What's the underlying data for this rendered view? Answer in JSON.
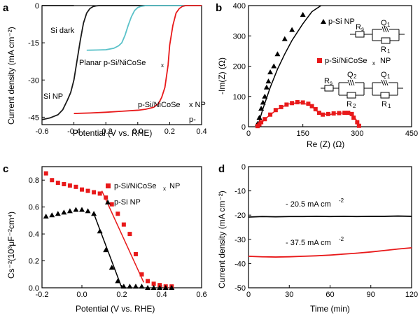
{
  "chart_data": [
    {
      "panel": "a",
      "type": "line",
      "xlabel": "Potential (V vs. RHE)",
      "ylabel": "Current density (mA cm⁻²)",
      "xlim": [
        -0.6,
        0.4
      ],
      "ylim": [
        -48,
        0
      ],
      "xticks": [
        "-0.6",
        "-0.4",
        "-0.2",
        "0.0",
        "0.2",
        "0.4"
      ],
      "yticks": [
        "0",
        "-15",
        "-30",
        "-45"
      ],
      "series": [
        {
          "name": "Si dark",
          "color": "#1a1a1a",
          "x": [
            -0.6,
            -0.4
          ],
          "y": [
            0,
            0
          ]
        },
        {
          "name": "Si NP",
          "color": "#1a1a1a",
          "x": [
            -0.6,
            -0.55,
            -0.5,
            -0.47,
            -0.44,
            -0.42,
            -0.4,
            -0.38,
            -0.36,
            -0.34,
            -0.32,
            -0.3,
            -0.28,
            -0.26,
            -0.24,
            -0.2,
            -0.1,
            0.0,
            0.2,
            0.4
          ],
          "y": [
            -46.0,
            -45.3,
            -44.0,
            -42.0,
            -38.0,
            -35.0,
            -30.0,
            -22.0,
            -14.0,
            -7.0,
            -3.0,
            -1.2,
            -0.4,
            -0.1,
            0,
            0,
            0,
            0,
            0,
            0
          ]
        },
        {
          "name": "Planar p-Si/NiCoSex",
          "color": "#5bc2c9",
          "x": [
            -0.32,
            -0.25,
            -0.2,
            -0.15,
            -0.12,
            -0.1,
            -0.08,
            -0.06,
            -0.04,
            -0.02,
            0.0,
            0.02,
            0.05,
            0.1,
            0.2,
            0.4
          ],
          "y": [
            -18.0,
            -17.9,
            -17.8,
            -17.2,
            -16.2,
            -15.0,
            -12.0,
            -8.0,
            -4.5,
            -2.0,
            -0.8,
            -0.3,
            0,
            0,
            0,
            0
          ]
        },
        {
          "name": "p-Si/NiCoSex NP",
          "color": "#e8191a",
          "x": [
            -0.4,
            -0.3,
            -0.2,
            -0.1,
            0.0,
            0.05,
            0.1,
            0.13,
            0.15,
            0.17,
            0.19,
            0.2,
            0.22,
            0.24,
            0.26,
            0.28,
            0.3,
            0.35,
            0.4
          ],
          "y": [
            -43.5,
            -43.3,
            -43.0,
            -42.6,
            -42.2,
            -41.8,
            -41.0,
            -39.5,
            -37.0,
            -33.0,
            -24.0,
            -16.0,
            -8.0,
            -3.0,
            -1.2,
            -0.3,
            0,
            0,
            0
          ]
        }
      ],
      "annotations": [
        "Si dark",
        "Si NP",
        "Planar p-Si/NiCoSe",
        "p-Si/NiCoSe",
        "x",
        "x NP",
        "p-"
      ]
    },
    {
      "panel": "b",
      "type": "scatter",
      "xlabel": "Re (Z) (Ω)",
      "ylabel": "-Im(Z) (Ω)",
      "xlim": [
        0,
        450
      ],
      "ylim": [
        0,
        400
      ],
      "xticks": [
        "0",
        "150",
        "300",
        "450"
      ],
      "yticks": [
        "0",
        "100",
        "200",
        "300",
        "400"
      ],
      "series": [
        {
          "name": "p-Si NP",
          "color": "#000000",
          "marker": "triangle",
          "x": [
            25,
            30,
            35,
            40,
            45,
            50,
            55,
            60,
            70,
            80,
            100,
            120,
            150
          ],
          "y": [
            10,
            30,
            60,
            80,
            100,
            130,
            150,
            180,
            200,
            240,
            290,
            320,
            370
          ],
          "fit_x": [
            25,
            40,
            60,
            80,
            100,
            120,
            150,
            175,
            200
          ],
          "fit_y": [
            0,
            60,
            130,
            190,
            240,
            285,
            340,
            380,
            400
          ]
        },
        {
          "name": "p-Si/NiCoSex NP",
          "color": "#e8191a",
          "marker": "square",
          "x": [
            25,
            30,
            35,
            45,
            60,
            75,
            90,
            105,
            120,
            135,
            150,
            165,
            175,
            185,
            195,
            205,
            220,
            235,
            250,
            265,
            275,
            285,
            290,
            300,
            305
          ],
          "y": [
            2,
            8,
            15,
            25,
            40,
            55,
            65,
            73,
            78,
            81,
            80,
            76,
            68,
            58,
            46,
            40,
            42,
            44,
            45,
            46,
            46,
            42,
            30,
            15,
            3
          ],
          "fit_x": [
            25,
            50,
            80,
            110,
            140,
            170,
            195,
            220,
            250,
            275,
            290,
            300,
            308
          ],
          "fit_y": [
            0,
            30,
            58,
            75,
            80,
            72,
            45,
            40,
            45,
            45,
            35,
            18,
            0
          ]
        }
      ],
      "legend": [
        "p-Si NP",
        "p-Si/NiCoSe",
        "x",
        "NP"
      ],
      "circuit_labels": [
        "R",
        "s",
        "Q",
        "1",
        "R",
        "1",
        "R",
        "s",
        "Q",
        "2",
        "R",
        "2",
        "Q",
        "1",
        "R",
        "1"
      ]
    },
    {
      "panel": "c",
      "type": "scatter",
      "xlabel": "Potential (V vs. RHE)",
      "ylabel": "Cs⁻²(10³μF⁻²cm⁴)",
      "xlim": [
        -0.2,
        0.6
      ],
      "ylim": [
        0,
        0.9
      ],
      "xticks": [
        "-0.2",
        "0.0",
        "0.2",
        "0.4",
        "0.6"
      ],
      "yticks": [
        "0.0",
        "0.2",
        "0.4",
        "0.6",
        "0.8"
      ],
      "series": [
        {
          "name": "p-Si/NiCoSex NP",
          "color": "#e8191a",
          "marker": "square",
          "x": [
            -0.18,
            -0.15,
            -0.12,
            -0.09,
            -0.06,
            -0.03,
            0.0,
            0.03,
            0.06,
            0.09,
            0.12,
            0.15,
            0.18,
            0.21,
            0.24,
            0.27,
            0.3,
            0.33,
            0.36,
            0.39,
            0.42,
            0.45
          ],
          "y": [
            0.85,
            0.8,
            0.78,
            0.77,
            0.76,
            0.75,
            0.73,
            0.72,
            0.71,
            0.7,
            0.67,
            0.62,
            0.55,
            0.47,
            0.4,
            0.25,
            0.1,
            0.05,
            0.03,
            0.02,
            0.01,
            0.01
          ],
          "fit_x": [
            0.1,
            0.31
          ],
          "fit_y": [
            0.72,
            0.04
          ]
        },
        {
          "name": "p-Si NP",
          "color": "#000000",
          "marker": "triangle",
          "x": [
            -0.18,
            -0.15,
            -0.12,
            -0.09,
            -0.06,
            -0.03,
            0.0,
            0.03,
            0.06,
            0.09,
            0.12,
            0.15,
            0.18,
            0.21,
            0.24,
            0.27,
            0.3,
            0.33,
            0.36,
            0.39,
            0.42,
            0.45
          ],
          "y": [
            0.53,
            0.54,
            0.55,
            0.56,
            0.57,
            0.58,
            0.58,
            0.57,
            0.55,
            0.42,
            0.28,
            0.15,
            0.05,
            0.01,
            0.01,
            0.01,
            0.01,
            0.0,
            0.0,
            0.0,
            0.0,
            0.0
          ],
          "fit_x": [
            0.06,
            0.2
          ],
          "fit_y": [
            0.55,
            0.0
          ]
        }
      ],
      "legend": [
        "p-Si/NiCoSe",
        "x",
        "NP",
        "p-Si NP"
      ]
    },
    {
      "panel": "d",
      "type": "line",
      "xlabel": "Time (min)",
      "ylabel": "Current density (mA cm⁻²)",
      "xlim": [
        0,
        120
      ],
      "ylim": [
        -50,
        0
      ],
      "xticks": [
        "0",
        "30",
        "60",
        "90",
        "120"
      ],
      "yticks": [
        "0",
        "-10",
        "-20",
        "-30",
        "-40",
        "-50"
      ],
      "series": [
        {
          "name": "- 20.5 mA cm⁻²",
          "color": "#000000",
          "x": [
            0,
            10,
            20,
            30,
            40,
            50,
            60,
            70,
            80,
            90,
            100,
            110,
            120
          ],
          "y": [
            -20.8,
            -20.6,
            -20.7,
            -20.6,
            -20.6,
            -20.5,
            -20.6,
            -20.5,
            -20.6,
            -20.5,
            -20.5,
            -20.4,
            -20.5
          ]
        },
        {
          "name": "- 37.5 mA cm⁻²",
          "color": "#e8191a",
          "x": [
            0,
            10,
            20,
            30,
            40,
            50,
            60,
            70,
            80,
            90,
            100,
            110,
            120
          ],
          "y": [
            -37.0,
            -37.2,
            -37.3,
            -37.2,
            -37.0,
            -36.8,
            -36.5,
            -36.1,
            -35.7,
            -35.2,
            -34.6,
            -34.0,
            -33.5
          ]
        }
      ],
      "annotations": [
        "- 20.5 mA cm",
        "-2",
        "- 37.5 mA cm",
        "-2"
      ]
    }
  ]
}
